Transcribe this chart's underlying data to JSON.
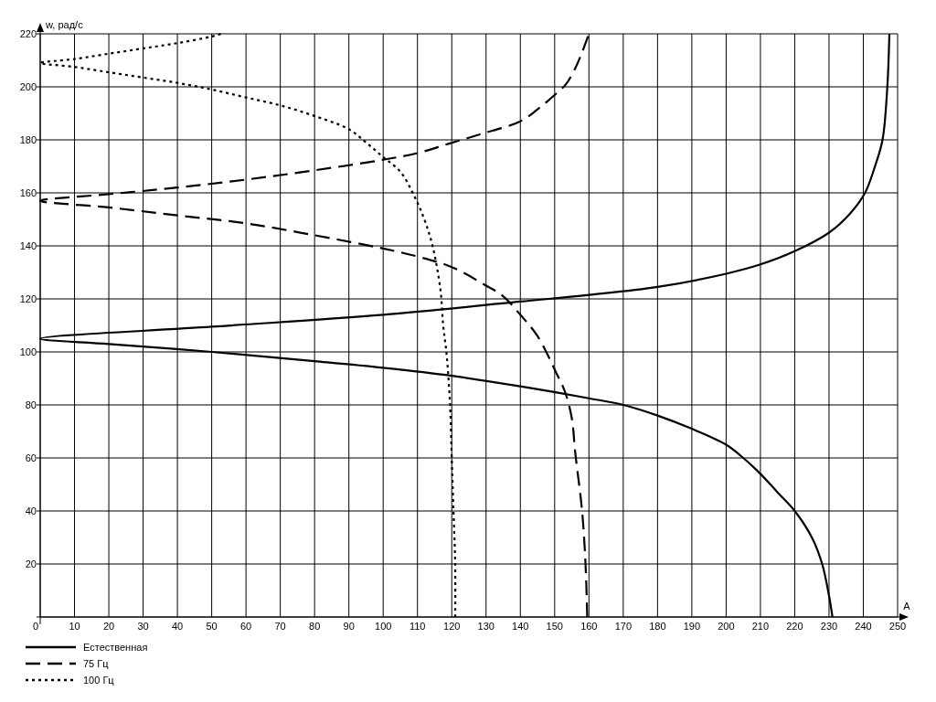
{
  "chart_data": {
    "type": "line",
    "xlabel": "A",
    "ylabel": "w, рад/с",
    "xlim": [
      0,
      250
    ],
    "ylim": [
      0,
      220
    ],
    "xticks": [
      0,
      10,
      20,
      30,
      40,
      50,
      60,
      70,
      80,
      90,
      100,
      110,
      120,
      130,
      140,
      150,
      160,
      170,
      180,
      190,
      200,
      210,
      220,
      230,
      240,
      250
    ],
    "yticks": [
      {
        "value": 0,
        "label": null
      },
      20,
      40,
      60,
      80,
      100,
      120,
      140,
      160,
      180,
      200,
      220
    ],
    "grid": true,
    "legend": "bottom",
    "series": [
      {
        "name": "Естественная",
        "color": "#000000",
        "line_style": "solid",
        "x": [
          231,
          230,
          228,
          225,
          220,
          215,
          210,
          205,
          200,
          190,
          180,
          170,
          160,
          140,
          120,
          100,
          80,
          50,
          20,
          0,
          50,
          100,
          140,
          160,
          180,
          200,
          210,
          220,
          230,
          236,
          240.5,
          243.4,
          245.6,
          247,
          247.6
        ],
        "values": [
          0,
          8,
          20,
          30,
          40,
          47,
          54,
          60,
          65,
          71,
          76,
          80,
          82.5,
          87,
          91,
          94,
          96.5,
          100,
          103,
          105,
          109.5,
          114,
          119,
          121.5,
          124.5,
          129.5,
          133,
          138,
          145,
          152,
          160,
          170,
          180,
          200,
          220
        ]
      },
      {
        "name": "75 Гц",
        "color": "#000000",
        "line_style": "dashed",
        "x": [
          159.5,
          159,
          158,
          156,
          155,
          153,
          150.5,
          145,
          140,
          135,
          130,
          120,
          110,
          100,
          80,
          60,
          40,
          20,
          0,
          20,
          40,
          60,
          80,
          100,
          110,
          119,
          128,
          140,
          145,
          150.5,
          153.3,
          156,
          158,
          160
        ],
        "values": [
          0,
          20,
          40,
          62,
          75,
          85,
          92,
          106,
          114,
          121,
          125,
          132,
          136,
          139,
          144,
          148.5,
          151.5,
          154.5,
          157,
          159.5,
          162,
          165,
          168.5,
          172.5,
          175,
          178.5,
          182,
          187,
          191.5,
          197.5,
          201,
          207,
          213,
          220
        ]
      },
      {
        "name": "100 Гц",
        "color": "#000000",
        "line_style": "dotted",
        "x": [
          121,
          121,
          120.5,
          120,
          119.5,
          118.5,
          117.5,
          116.7,
          114.4,
          112,
          109,
          105,
          100,
          95,
          90,
          80,
          70,
          60,
          50,
          40,
          30,
          20,
          10,
          0,
          10,
          20,
          30,
          40,
          50,
          52.8
        ],
        "values": [
          0,
          20,
          40,
          60,
          80,
          99,
          110,
          123.5,
          140,
          150,
          159,
          168,
          173.5,
          179,
          184,
          189,
          193,
          196,
          199,
          201.5,
          203.5,
          205.5,
          207.5,
          209,
          210.5,
          212.5,
          214.5,
          216.5,
          219,
          220
        ]
      }
    ]
  }
}
